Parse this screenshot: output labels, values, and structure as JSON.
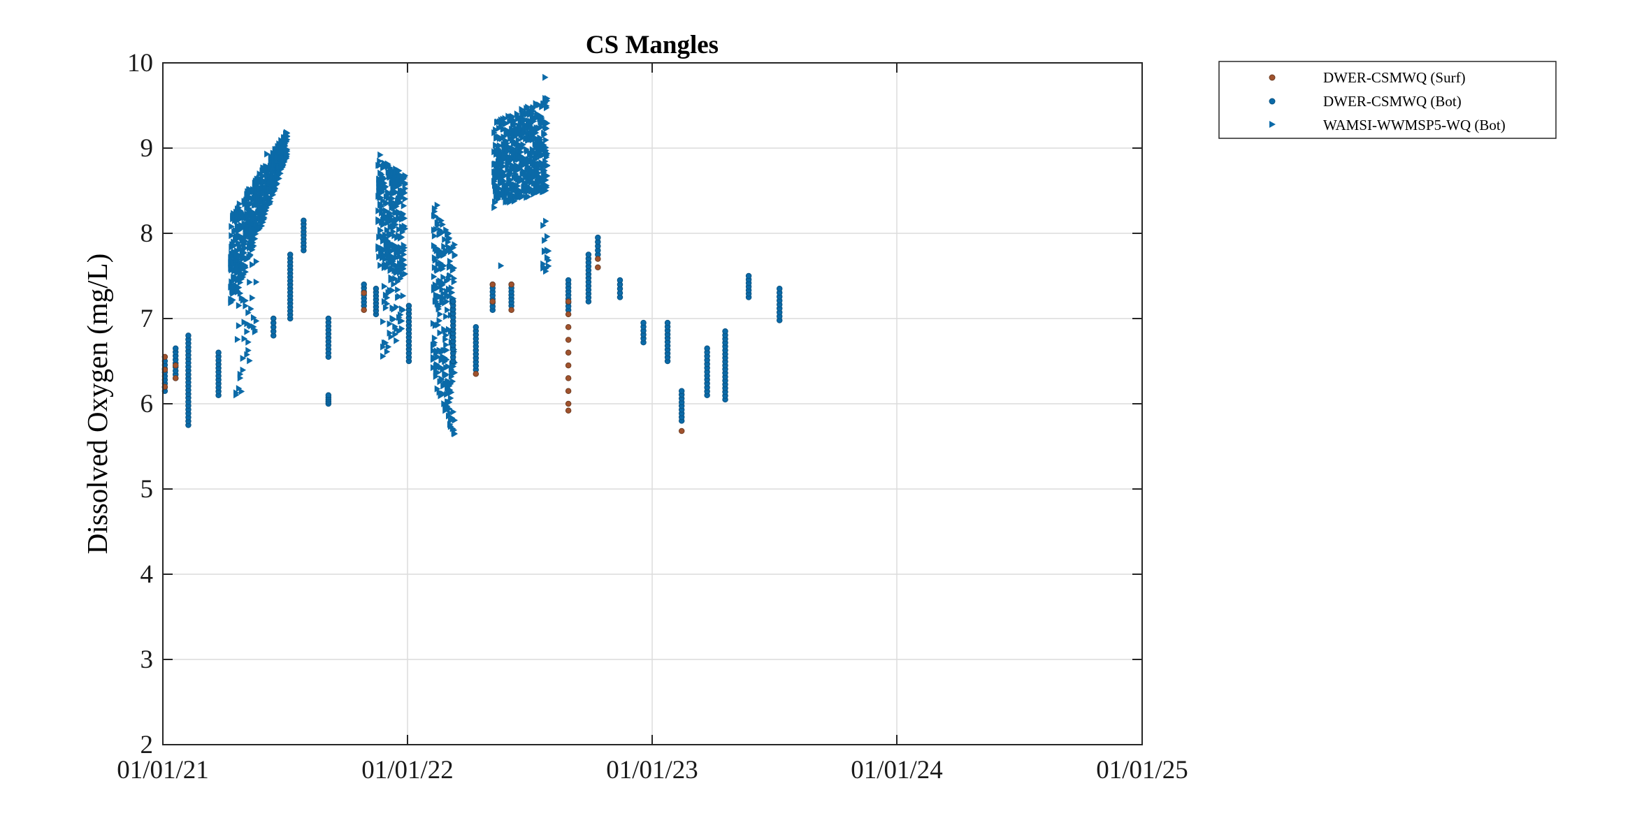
{
  "chart_data": {
    "type": "scatter",
    "title": "CS Mangles",
    "xlabel": "",
    "ylabel": "Dissolved Oxygen (mg/L)",
    "x_axis_type": "date",
    "xlim": [
      "2021-01-01",
      "2025-01-01"
    ],
    "ylim": [
      2,
      10
    ],
    "x_ticks": [
      "2021-01-01",
      "2022-01-01",
      "2023-01-01",
      "2024-01-01",
      "2025-01-01"
    ],
    "x_tick_labels": [
      "01/01/21",
      "01/01/22",
      "01/01/23",
      "01/01/24",
      "01/01/25"
    ],
    "y_ticks": [
      2,
      3,
      4,
      5,
      6,
      7,
      8,
      9,
      10
    ],
    "y_tick_labels": [
      "2",
      "3",
      "4",
      "5",
      "6",
      "7",
      "8",
      "9",
      "10"
    ],
    "grid": true,
    "legend_position": "outside-top-right",
    "series": [
      {
        "name": "DWER-CSMWQ (Surf)",
        "marker": "circle",
        "color": "#a0522d",
        "points": [
          [
            "2021-01-04",
            6.2
          ],
          [
            "2021-01-04",
            6.4
          ],
          [
            "2021-01-04",
            6.55
          ],
          [
            "2021-01-20",
            6.3
          ],
          [
            "2021-01-20",
            6.45
          ],
          [
            "2021-10-28",
            7.1
          ],
          [
            "2021-10-28",
            7.3
          ],
          [
            "2022-04-13",
            6.35
          ],
          [
            "2022-05-08",
            7.4
          ],
          [
            "2022-05-08",
            7.2
          ],
          [
            "2022-06-05",
            7.1
          ],
          [
            "2022-06-05",
            7.4
          ],
          [
            "2022-08-29",
            5.92
          ],
          [
            "2022-08-29",
            6.0
          ],
          [
            "2022-08-29",
            6.15
          ],
          [
            "2022-08-29",
            6.3
          ],
          [
            "2022-08-29",
            6.45
          ],
          [
            "2022-08-29",
            6.6
          ],
          [
            "2022-08-29",
            6.75
          ],
          [
            "2022-08-29",
            6.9
          ],
          [
            "2022-08-29",
            7.05
          ],
          [
            "2022-08-29",
            7.2
          ],
          [
            "2022-10-12",
            7.6
          ],
          [
            "2022-10-12",
            7.7
          ],
          [
            "2023-02-14",
            5.68
          ]
        ]
      },
      {
        "name": "DWER-CSMWQ (Bot)",
        "marker": "circle",
        "color": "#0b6aa8",
        "clusters": [
          {
            "x": "2021-01-04",
            "y_min": 6.15,
            "y_max": 6.5
          },
          {
            "x": "2021-01-20",
            "y_min": 6.3,
            "y_max": 6.65
          },
          {
            "x": "2021-02-08",
            "y_min": 5.75,
            "y_max": 6.8
          },
          {
            "x": "2021-03-25",
            "y_min": 6.1,
            "y_max": 6.6
          },
          {
            "x": "2021-06-15",
            "y_min": 6.8,
            "y_max": 7.0
          },
          {
            "x": "2021-07-10",
            "y_min": 7.0,
            "y_max": 7.75
          },
          {
            "x": "2021-07-30",
            "y_min": 7.8,
            "y_max": 8.15
          },
          {
            "x": "2021-09-05",
            "y_min": 6.55,
            "y_max": 7.0
          },
          {
            "x": "2021-09-05",
            "y_min": 6.0,
            "y_max": 6.1
          },
          {
            "x": "2021-10-28",
            "y_min": 7.15,
            "y_max": 7.4
          },
          {
            "x": "2021-11-15",
            "y_min": 7.05,
            "y_max": 7.35
          },
          {
            "x": "2022-01-03",
            "y_min": 6.5,
            "y_max": 7.15
          },
          {
            "x": "2022-03-10",
            "y_min": 6.5,
            "y_max": 7.2
          },
          {
            "x": "2022-04-13",
            "y_min": 6.4,
            "y_max": 6.9
          },
          {
            "x": "2022-05-08",
            "y_min": 7.1,
            "y_max": 7.4
          },
          {
            "x": "2022-06-05",
            "y_min": 7.15,
            "y_max": 7.4
          },
          {
            "x": "2022-08-29",
            "y_min": 7.1,
            "y_max": 7.45
          },
          {
            "x": "2022-09-28",
            "y_min": 7.2,
            "y_max": 7.75
          },
          {
            "x": "2022-10-12",
            "y_min": 7.75,
            "y_max": 7.95
          },
          {
            "x": "2022-11-14",
            "y_min": 7.25,
            "y_max": 7.45
          },
          {
            "x": "2022-12-19",
            "y_min": 6.72,
            "y_max": 6.95
          },
          {
            "x": "2023-01-24",
            "y_min": 6.5,
            "y_max": 6.95
          },
          {
            "x": "2023-02-14",
            "y_min": 5.8,
            "y_max": 6.15
          },
          {
            "x": "2023-03-24",
            "y_min": 6.1,
            "y_max": 6.65
          },
          {
            "x": "2023-04-20",
            "y_min": 6.05,
            "y_max": 6.85
          },
          {
            "x": "2023-05-25",
            "y_min": 7.25,
            "y_max": 7.5
          },
          {
            "x": "2023-07-10",
            "y_min": 6.98,
            "y_max": 7.35
          }
        ]
      },
      {
        "name": "WAMSI-WWMSP5-WQ (Bot)",
        "marker": "triangle-right",
        "color": "#0b6aa8",
        "clusters": [
          {
            "x_start": "2021-04-12",
            "x_end": "2021-07-05",
            "y_low_start": 7.1,
            "y_high_start": 8.2,
            "y_low_end": 8.9,
            "y_high_end": 9.2,
            "dense": true
          },
          {
            "x_start": "2021-04-20",
            "x_end": "2021-05-20",
            "y_low_start": 5.9,
            "y_high_start": 7.6,
            "y_low_end": 6.8,
            "y_high_end": 8.3,
            "dense": false
          },
          {
            "x_start": "2021-11-18",
            "x_end": "2021-12-28",
            "y_low_start": 7.6,
            "y_high_start": 8.9,
            "y_low_end": 7.5,
            "y_high_end": 8.7,
            "dense": true
          },
          {
            "x_start": "2021-11-25",
            "x_end": "2021-12-25",
            "y_low_start": 6.4,
            "y_high_start": 7.5,
            "y_low_end": 6.9,
            "y_high_end": 7.6,
            "dense": false
          },
          {
            "x_start": "2022-02-08",
            "x_end": "2022-03-12",
            "y_low_start": 6.3,
            "y_high_start": 8.35,
            "y_low_end": 5.6,
            "y_high_end": 7.9,
            "dense": true
          },
          {
            "x_start": "2022-05-10",
            "x_end": "2022-07-28",
            "y_low_start": 8.3,
            "y_high_start": 9.3,
            "y_low_end": 8.5,
            "y_high_end": 9.6,
            "dense": true
          },
          {
            "x_start": "2022-07-22",
            "x_end": "2022-07-30",
            "y_low_start": 7.5,
            "y_high_start": 8.2,
            "y_low_end": 7.6,
            "y_high_end": 8.1,
            "dense": false
          }
        ],
        "outliers": [
          [
            "2022-05-20",
            7.62
          ],
          [
            "2022-07-25",
            9.83
          ],
          [
            "2021-06-05",
            8.93
          ],
          [
            "2021-11-21",
            8.92
          ],
          [
            "2022-02-14",
            8.33
          ]
        ]
      }
    ]
  }
}
